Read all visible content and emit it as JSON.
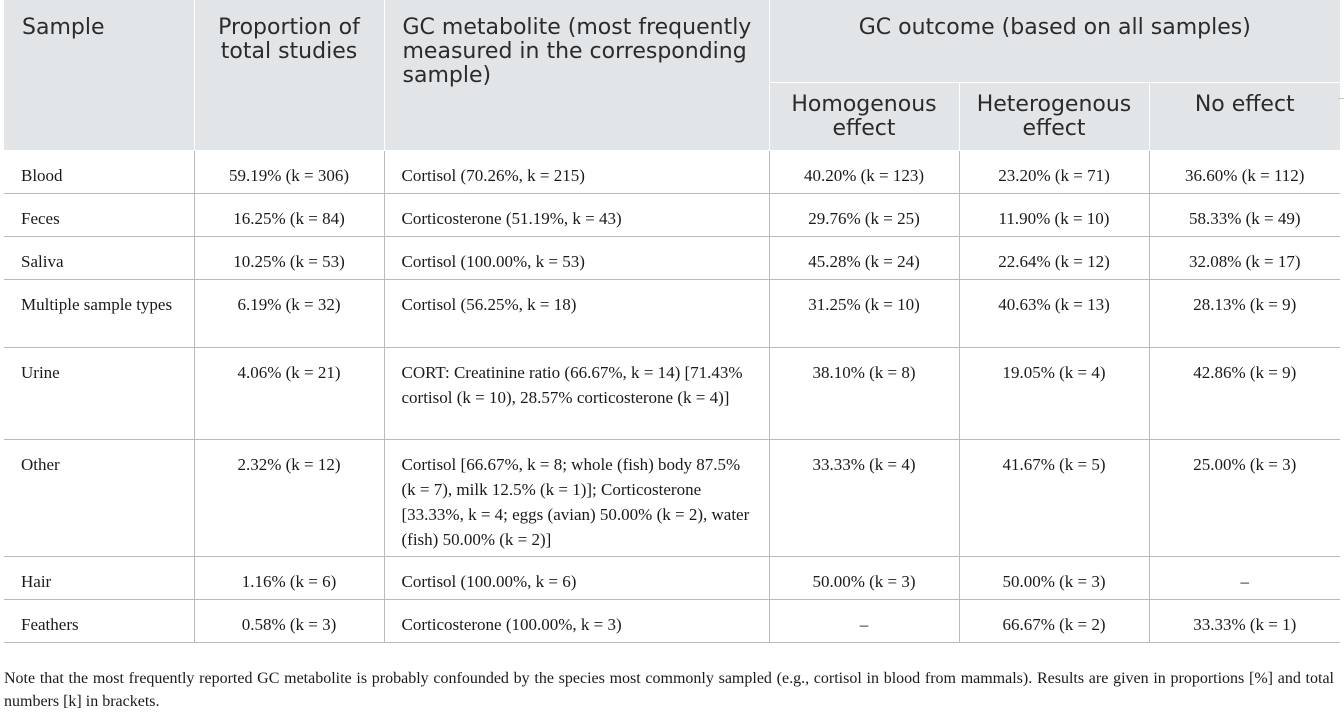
{
  "table": {
    "headers": {
      "sample": "Sample",
      "proportion": "Proportion of total studies",
      "metabolite": "GC metabolite (most frequently measured in the corresponding sample)",
      "outcome_group": "GC outcome (based on all samples)",
      "homogenous": "Homogenous effect",
      "heterogenous": "Heterogenous effect",
      "no_effect": "No effect"
    },
    "rows": [
      {
        "sample": "Blood",
        "proportion": "59.19% (k = 306)",
        "metabolite": "Cortisol (70.26%, k = 215)",
        "homogenous": "40.20% (k = 123)",
        "heterogenous": "23.20% (k = 71)",
        "no_effect": "36.60% (k = 112)"
      },
      {
        "sample": "Feces",
        "proportion": "16.25% (k = 84)",
        "metabolite": "Corticosterone (51.19%, k = 43)",
        "homogenous": "29.76% (k = 25)",
        "heterogenous": "11.90% (k = 10)",
        "no_effect": "58.33% (k = 49)"
      },
      {
        "sample": "Saliva",
        "proportion": "10.25% (k = 53)",
        "metabolite": "Cortisol (100.00%, k = 53)",
        "homogenous": "45.28% (k = 24)",
        "heterogenous": "22.64% (k = 12)",
        "no_effect": "32.08% (k = 17)"
      },
      {
        "sample": "Multiple sample types",
        "proportion": "6.19% (k = 32)",
        "metabolite": "Cortisol (56.25%, k = 18)",
        "homogenous": "31.25% (k = 10)",
        "heterogenous": "40.63% (k = 13)",
        "no_effect": "28.13% (k = 9)"
      },
      {
        "sample": "Urine",
        "proportion": "4.06% (k = 21)",
        "metabolite": "CORT: Creatinine ratio (66.67%, k = 14) [71.43% cortisol (k = 10), 28.57% corticosterone (k = 4)]",
        "homogenous": "38.10% (k = 8)",
        "heterogenous": "19.05% (k = 4)",
        "no_effect": "42.86% (k = 9)"
      },
      {
        "sample": "Other",
        "proportion": "2.32% (k = 12)",
        "metabolite": "Cortisol [66.67%, k = 8; whole (fish) body 87.5% (k = 7), milk 12.5% (k = 1)]; Corticosterone [33.33%, k = 4; eggs (avian) 50.00% (k = 2), water (fish) 50.00% (k = 2)]",
        "homogenous": "33.33% (k = 4)",
        "heterogenous": "41.67% (k = 5)",
        "no_effect": "25.00% (k = 3)"
      },
      {
        "sample": "Hair",
        "proportion": "1.16% (k = 6)",
        "metabolite": "Cortisol (100.00%, k = 6)",
        "homogenous": "50.00% (k = 3)",
        "heterogenous": "50.00% (k = 3)",
        "no_effect": "–"
      },
      {
        "sample": "Feathers",
        "proportion": "0.58% (k = 3)",
        "metabolite": "Corticosterone (100.00%, k = 3)",
        "homogenous": "–",
        "heterogenous": "66.67% (k = 2)",
        "no_effect": "33.33% (k = 1)"
      }
    ]
  },
  "note": "Note that the most frequently reported GC metabolite is probably confounded by the species most commonly sampled (e.g., cortisol in blood from mammals). Results are given in proportions [%] and total numbers [k] in brackets."
}
